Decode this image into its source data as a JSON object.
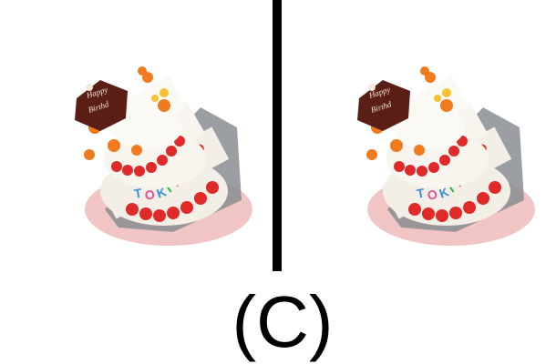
{
  "caption": "(C)",
  "cake_topper_text": [
    "Happy",
    "Birthd"
  ],
  "cake_side_text": "TOKINOSO",
  "colors": {
    "background": "#ffffff",
    "divider": "#000000",
    "caption": "#000000",
    "frosting": "#f3efe6",
    "plaque": "#5a1e14",
    "berry": "#e02a2a",
    "candle": "#f07a1e",
    "board": "#8a8d92",
    "wrapper": "#d65a52"
  }
}
